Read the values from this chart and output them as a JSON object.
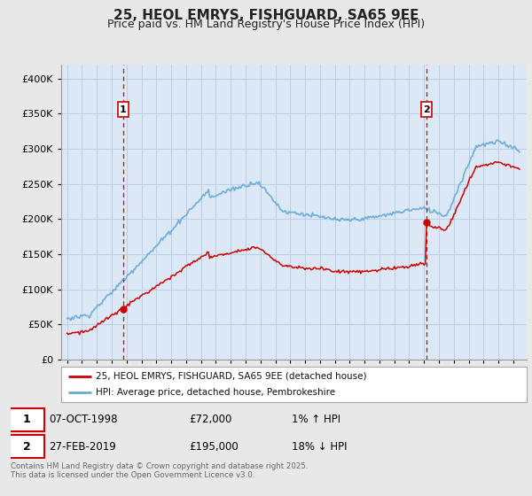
{
  "title": "25, HEOL EMRYS, FISHGUARD, SA65 9EE",
  "subtitle": "Price paid vs. HM Land Registry's House Price Index (HPI)",
  "red_label": "25, HEOL EMRYS, FISHGUARD, SA65 9EE (detached house)",
  "blue_label": "HPI: Average price, detached house, Pembrokeshire",
  "footnote": "Contains HM Land Registry data © Crown copyright and database right 2025.\nThis data is licensed under the Open Government Licence v3.0.",
  "marker1_date": "07-OCT-1998",
  "marker1_price": "£72,000",
  "marker1_hpi": "1% ↑ HPI",
  "marker2_date": "27-FEB-2019",
  "marker2_price": "£195,000",
  "marker2_hpi": "18% ↓ HPI",
  "ylim": [
    0,
    420000
  ],
  "yticks": [
    0,
    50000,
    100000,
    150000,
    200000,
    250000,
    300000,
    350000,
    400000
  ],
  "background_color": "#e8e8e8",
  "plot_bg": "#dce8f5",
  "grid_color": "#b8cfe8",
  "red_color": "#cc0000",
  "blue_color": "#6aaad4",
  "vline_color": "#cc0000",
  "marker1_x": 1998.77,
  "marker2_x": 2019.16,
  "sale1_price": 72000,
  "sale2_price": 195000,
  "title_fontsize": 11,
  "subtitle_fontsize": 9
}
